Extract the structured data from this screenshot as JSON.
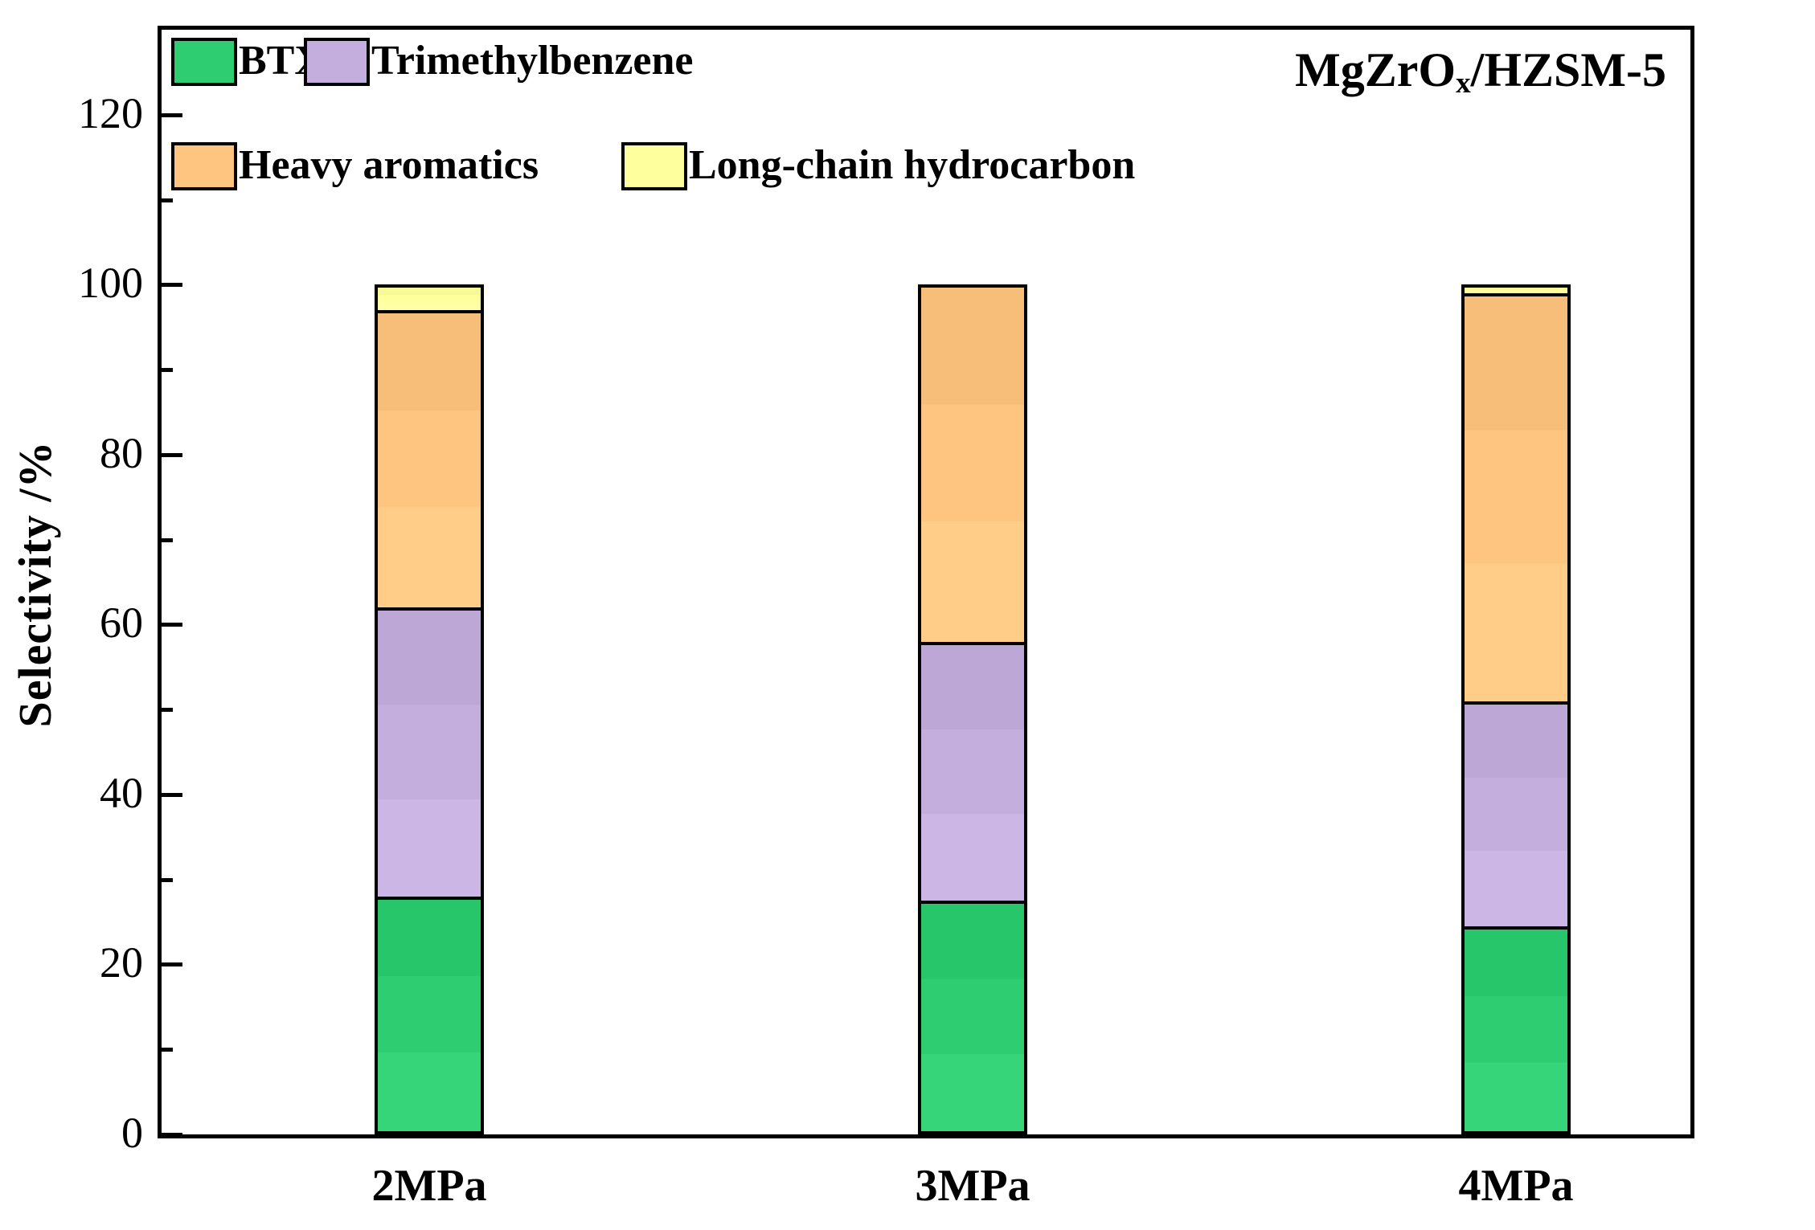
{
  "title": {
    "main": "MgZrO",
    "sub": "x",
    "suffix": "/HZSM-5"
  },
  "axes": {
    "y_label": "Selectivity /%",
    "y_tick_labels": [
      "0",
      "20",
      "40",
      "60",
      "80",
      "100",
      "120"
    ],
    "y_major_ticks": [
      0,
      20,
      40,
      60,
      80,
      100,
      120
    ],
    "y_minor_ticks": [
      10,
      30,
      50,
      70,
      90,
      110
    ],
    "y_max": 130,
    "x_categories": [
      "2MPa",
      "3MPa",
      "4MPa"
    ]
  },
  "legend": [
    {
      "label": "BTX",
      "color": "#2fcd72"
    },
    {
      "label": "Trimethylbenzene",
      "color": "#c3aedd"
    },
    {
      "label": "Heavy aromatics",
      "color": "#fdc57f"
    },
    {
      "label": "Long-chain hydrocarbon",
      "color": "#feff9d"
    }
  ],
  "chart_data": {
    "type": "bar",
    "stacked": true,
    "title": "MgZrOx/HZSM-5",
    "xlabel": "",
    "ylabel": "Selectivity /%",
    "ylim": [
      0,
      130
    ],
    "grid": false,
    "legend_position": "upper-left-inside",
    "categories": [
      "2MPa",
      "3MPa",
      "4MPa"
    ],
    "series": [
      {
        "name": "BTX",
        "color": "#2fcd72",
        "values": [
          28,
          27.5,
          24.5
        ]
      },
      {
        "name": "Trimethylbenzene",
        "color": "#c3aedd",
        "values": [
          34,
          30.5,
          26.5
        ]
      },
      {
        "name": "Heavy aromatics",
        "color": "#fdc57f",
        "values": [
          35,
          42,
          48
        ]
      },
      {
        "name": "Long-chain hydrocarbon",
        "color": "#feff9d",
        "values": [
          3,
          0,
          1
        ]
      }
    ]
  }
}
